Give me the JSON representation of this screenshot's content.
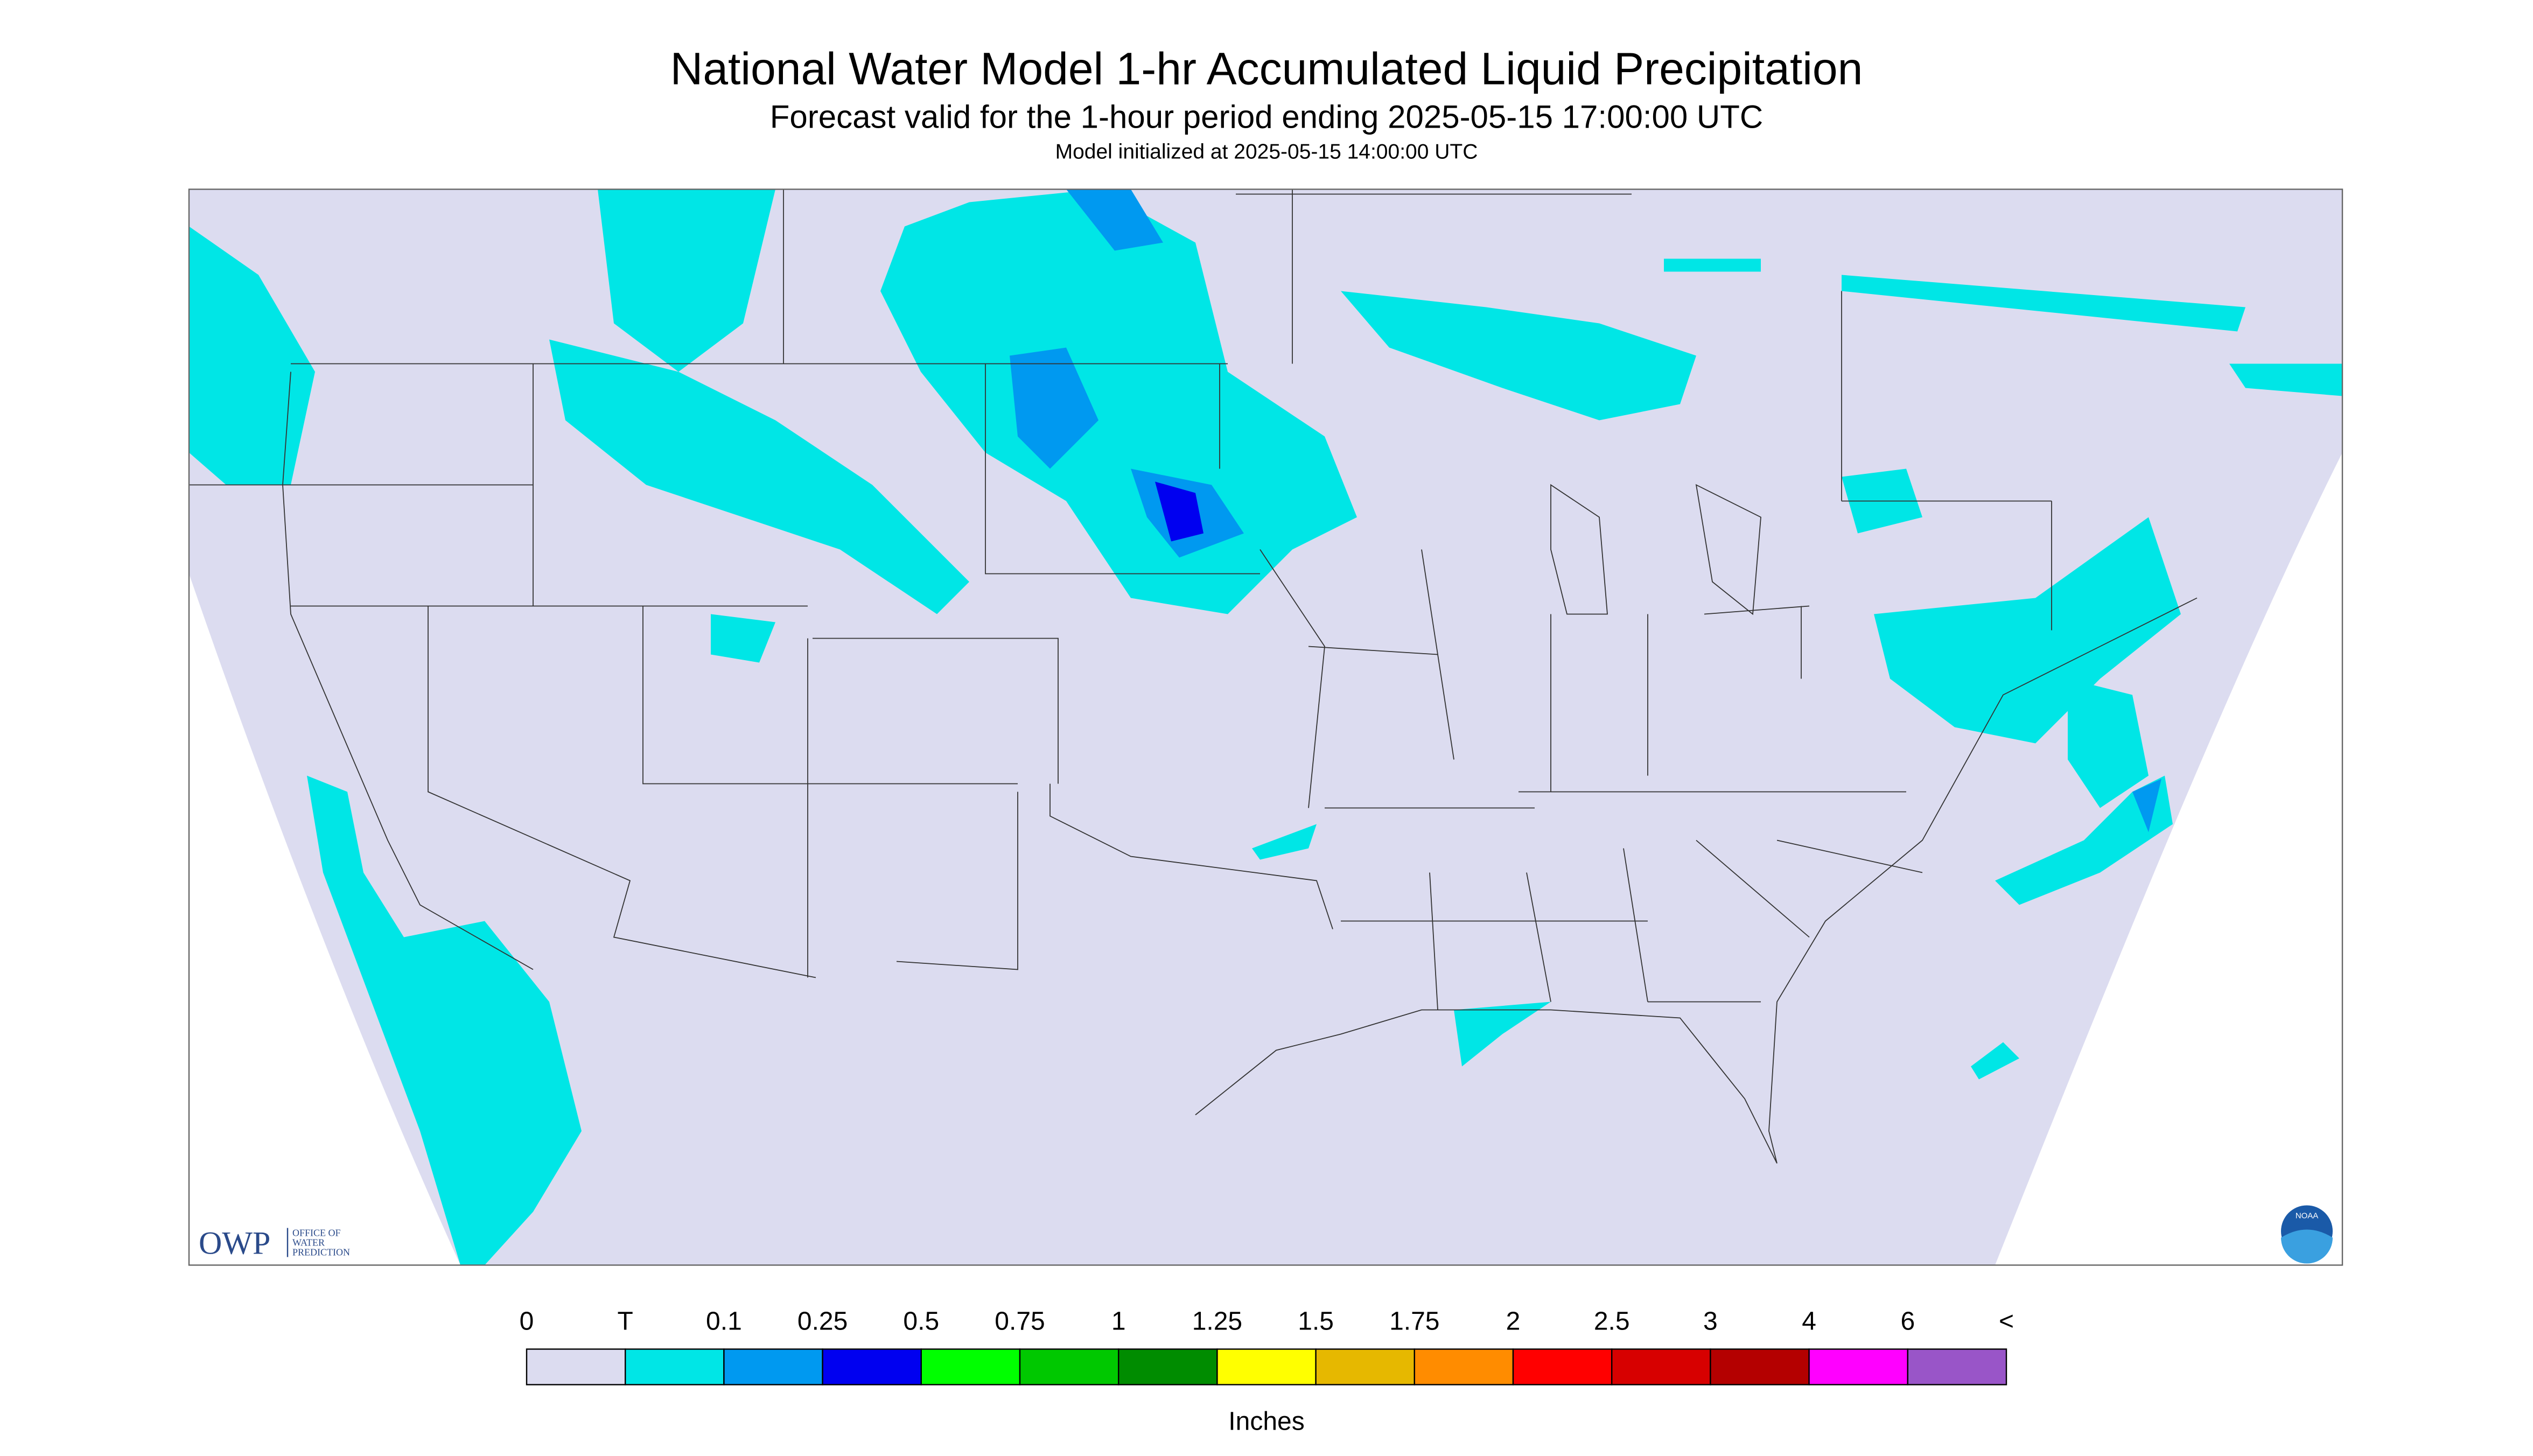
{
  "header": {
    "title": "National Water Model 1-hr Accumulated Liquid Precipitation",
    "subtitle": "Forecast valid for the 1-hour period ending 2025-05-15 17:00:00 UTC",
    "init": "Model initialized at 2025-05-15 14:00:00 UTC"
  },
  "legend": {
    "labels": [
      "0",
      "T",
      "0.1",
      "0.25",
      "0.5",
      "0.75",
      "1",
      "1.25",
      "1.5",
      "1.75",
      "2",
      "2.5",
      "3",
      "4",
      "6",
      "<"
    ],
    "colors": [
      "#dcdcf0",
      "#00e6e6",
      "#0099f0",
      "#0000f0",
      "#00ff00",
      "#00c800",
      "#008c00",
      "#ffff00",
      "#e6b800",
      "#ff8c00",
      "#ff0000",
      "#d70000",
      "#b40000",
      "#ff00ff",
      "#9955c8"
    ],
    "unit": "Inches"
  },
  "logos": {
    "owp": "OWP",
    "owp_text": [
      "OFFICE OF",
      "WATER",
      "PREDICTION"
    ],
    "noaa": "NOAA"
  }
}
